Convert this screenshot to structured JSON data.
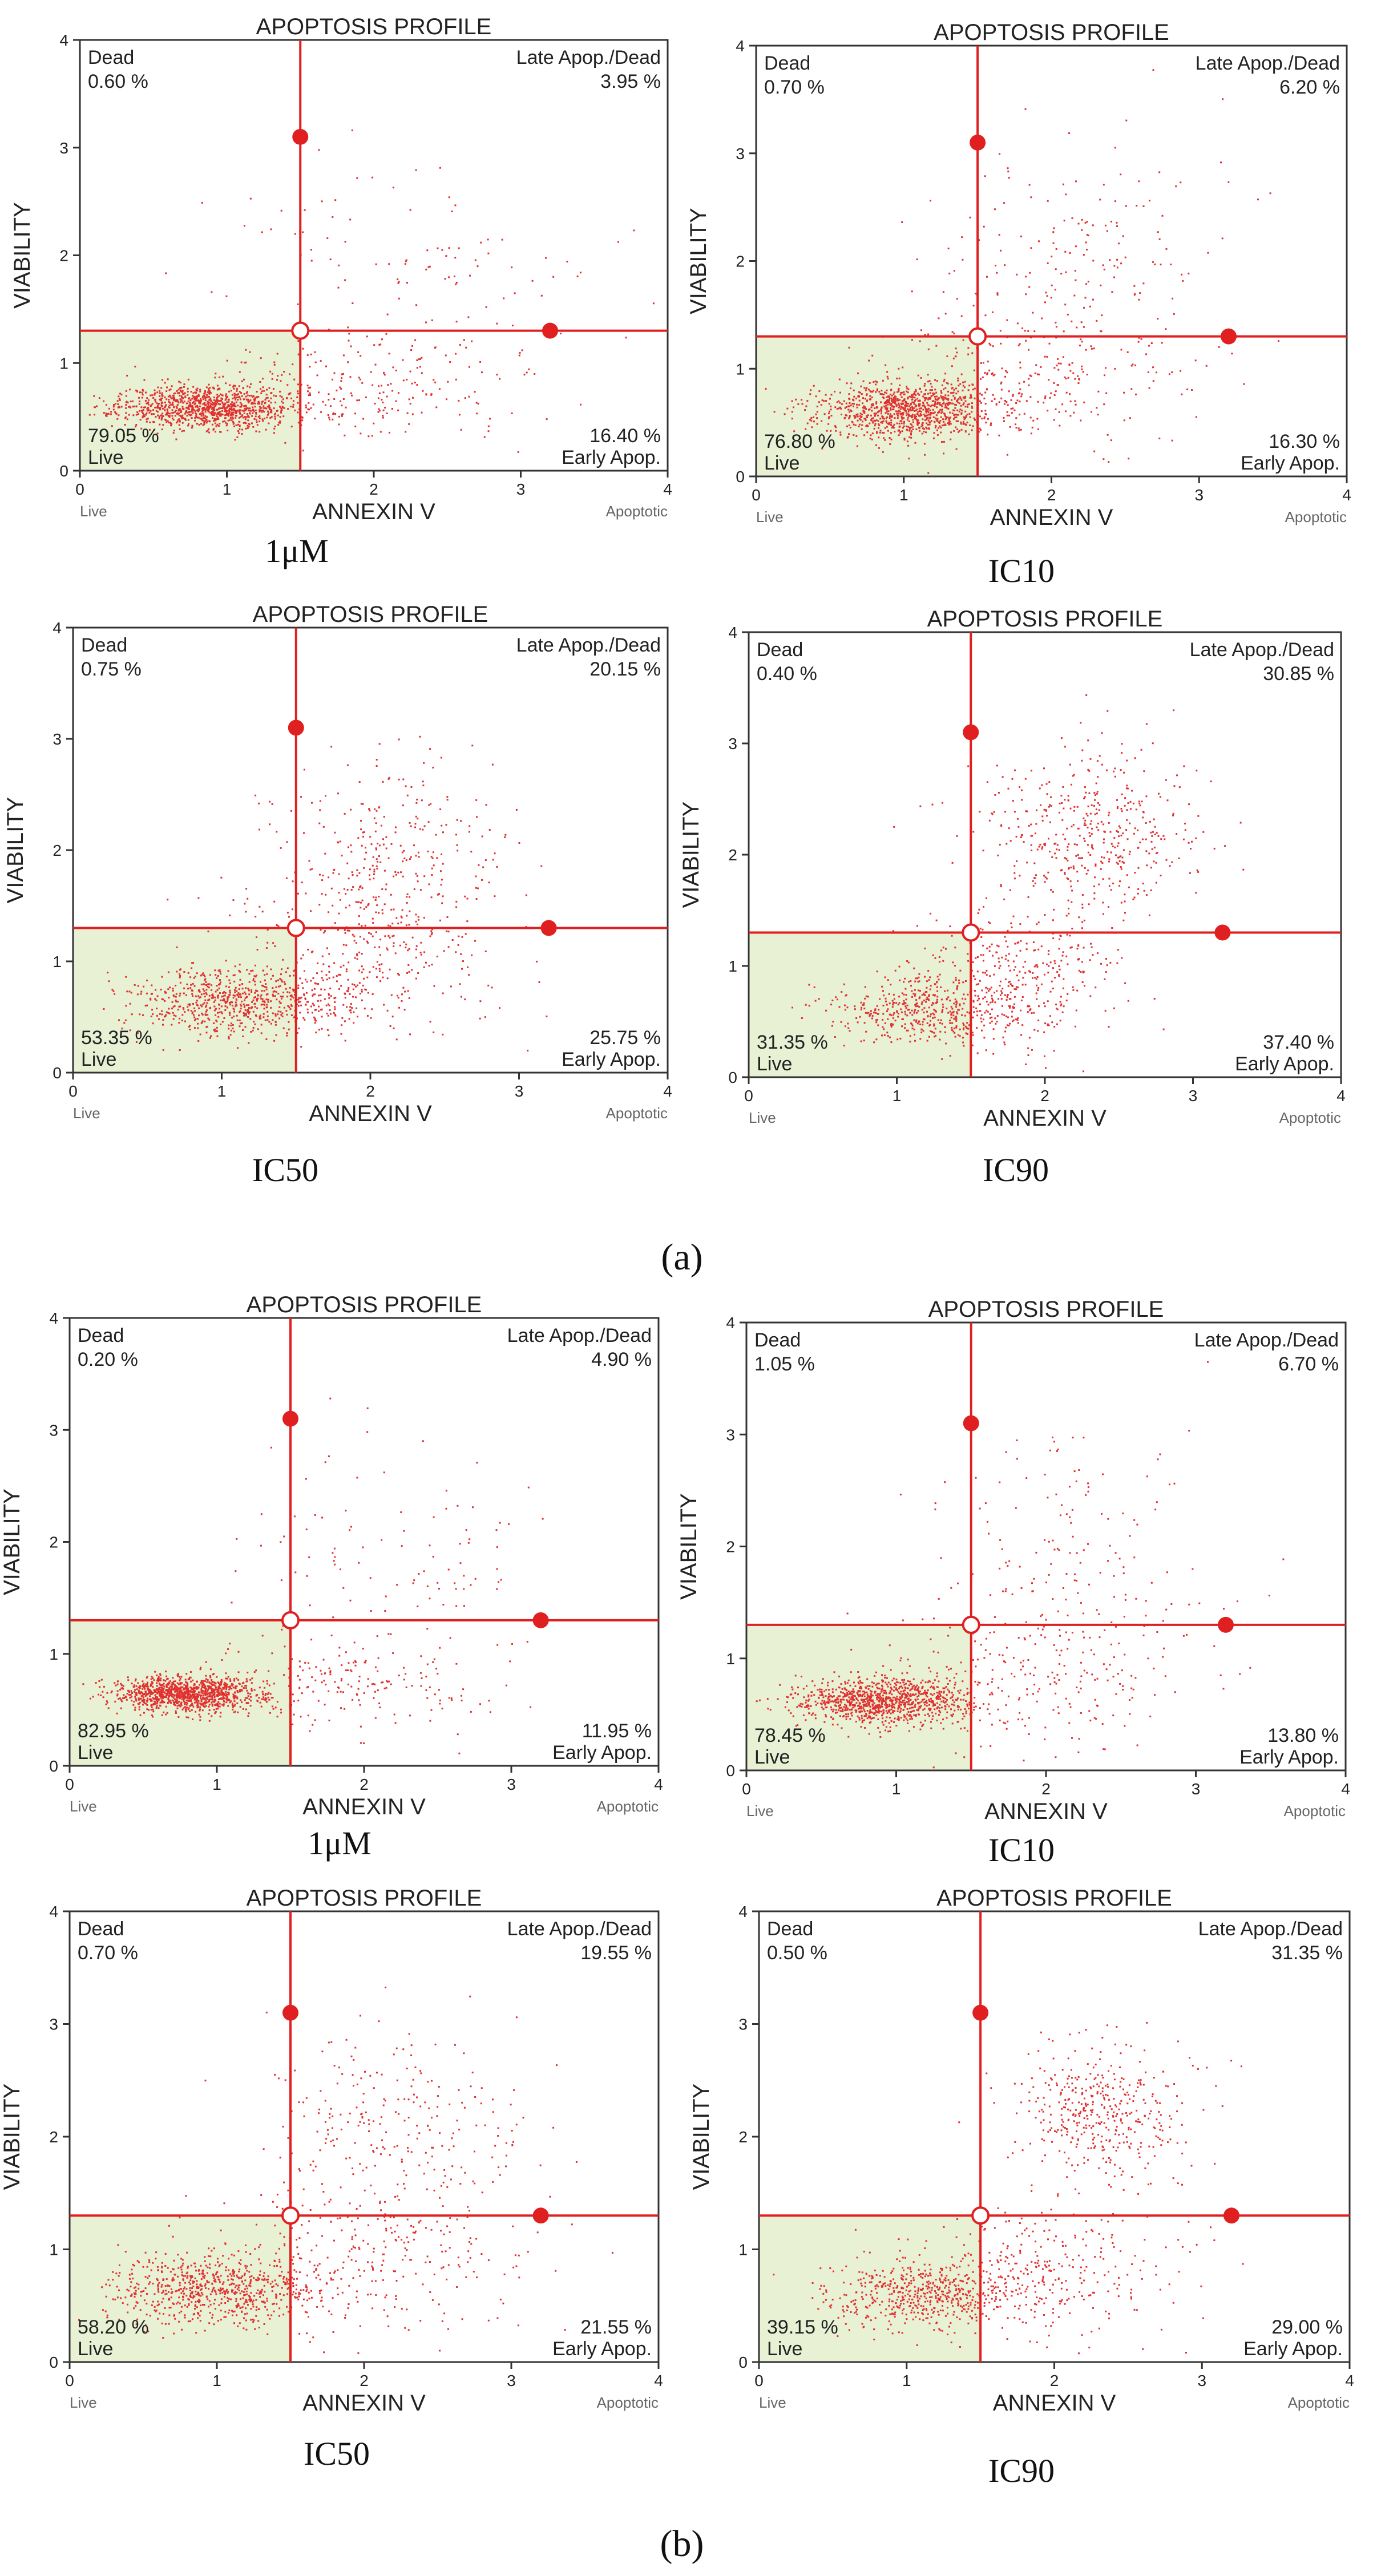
{
  "figure_labels": [
    "(a)",
    "(b)"
  ],
  "chart_data": [
    {
      "type": "scatter",
      "panel": "a",
      "condition": "1μM",
      "title": "APOPTOSIS PROFILE",
      "xlabel": "ANNEXIN V",
      "ylabel": "VIABILITY",
      "x_ticks": [
        "0",
        "1",
        "2",
        "3",
        "4"
      ],
      "y_ticks": [
        "0",
        "1",
        "2",
        "3",
        "4"
      ],
      "xlim": [
        0,
        4
      ],
      "ylim": [
        0,
        4
      ],
      "x_left_label": "Live",
      "x_right_label": "Apoptotic",
      "gate": {
        "x": 1.5,
        "y": 1.3
      },
      "marker_points": [
        [
          1.5,
          3.1
        ],
        [
          3.2,
          1.3
        ]
      ],
      "quadrants": {
        "dead": {
          "label": "Dead",
          "value": "0.60 %"
        },
        "late": {
          "label": "Late Apop./Dead",
          "value": "3.95 %"
        },
        "live": {
          "label": "Live",
          "value": "79.05 %"
        },
        "early": {
          "label": "Early Apop.",
          "value": "16.40 %"
        }
      },
      "clusters": [
        {
          "cx": 0.85,
          "cy": 0.6,
          "sx": 0.3,
          "sy": 0.1,
          "n": 1100
        },
        {
          "cx": 1.9,
          "cy": 0.75,
          "sx": 0.5,
          "sy": 0.25,
          "n": 230
        },
        {
          "cx": 2.3,
          "cy": 1.8,
          "sx": 0.6,
          "sy": 0.5,
          "n": 110
        }
      ],
      "seed": 11
    },
    {
      "type": "scatter",
      "panel": "a",
      "condition": "IC10",
      "title": "APOPTOSIS PROFILE",
      "xlabel": "ANNEXIN V",
      "ylabel": "VIABILITY",
      "x_ticks": [
        "0",
        "1",
        "2",
        "3",
        "4"
      ],
      "y_ticks": [
        "0",
        "1",
        "2",
        "3",
        "4"
      ],
      "xlim": [
        0,
        4
      ],
      "ylim": [
        0,
        4
      ],
      "x_left_label": "Live",
      "x_right_label": "Apoptotic",
      "gate": {
        "x": 1.5,
        "y": 1.3
      },
      "marker_points": [
        [
          1.5,
          3.1
        ],
        [
          3.2,
          1.3
        ]
      ],
      "quadrants": {
        "dead": {
          "label": "Dead",
          "value": "0.70 %"
        },
        "late": {
          "label": "Late Apop./Dead",
          "value": "6.20 %"
        },
        "live": {
          "label": "Live",
          "value": "76.80 %"
        },
        "early": {
          "label": "Early Apop.",
          "value": "16.30 %"
        }
      },
      "clusters": [
        {
          "cx": 1.0,
          "cy": 0.62,
          "sx": 0.3,
          "sy": 0.13,
          "n": 1000
        },
        {
          "cx": 1.9,
          "cy": 0.9,
          "sx": 0.5,
          "sy": 0.35,
          "n": 260
        },
        {
          "cx": 2.2,
          "cy": 2.0,
          "sx": 0.5,
          "sy": 0.5,
          "n": 170
        }
      ],
      "seed": 23
    },
    {
      "type": "scatter",
      "panel": "a",
      "condition": "IC50",
      "title": "APOPTOSIS PROFILE",
      "xlabel": "ANNEXIN V",
      "ylabel": "VIABILITY",
      "x_ticks": [
        "0",
        "1",
        "2",
        "3",
        "4"
      ],
      "y_ticks": [
        "0",
        "1",
        "2",
        "3",
        "4"
      ],
      "xlim": [
        0,
        4
      ],
      "ylim": [
        0,
        4
      ],
      "x_left_label": "Live",
      "x_right_label": "Apoptotic",
      "gate": {
        "x": 1.5,
        "y": 1.3
      },
      "marker_points": [
        [
          1.5,
          3.1
        ],
        [
          3.2,
          1.3
        ]
      ],
      "quadrants": {
        "dead": {
          "label": "Dead",
          "value": "0.75 %"
        },
        "late": {
          "label": "Late Apop./Dead",
          "value": "20.15 %"
        },
        "live": {
          "label": "Live",
          "value": "53.35 %"
        },
        "early": {
          "label": "Early Apop.",
          "value": "25.75 %"
        }
      },
      "clusters": [
        {
          "cx": 1.1,
          "cy": 0.65,
          "sx": 0.35,
          "sy": 0.15,
          "n": 700
        },
        {
          "cx": 1.9,
          "cy": 1.0,
          "sx": 0.45,
          "sy": 0.35,
          "n": 330
        },
        {
          "cx": 2.1,
          "cy": 2.0,
          "sx": 0.4,
          "sy": 0.45,
          "n": 280
        }
      ],
      "seed": 37
    },
    {
      "type": "scatter",
      "panel": "a",
      "condition": "IC90",
      "title": "APOPTOSIS PROFILE",
      "xlabel": "ANNEXIN V",
      "ylabel": "VIABILITY",
      "x_ticks": [
        "0",
        "1",
        "2",
        "3",
        "4"
      ],
      "y_ticks": [
        "0",
        "1",
        "2",
        "3",
        "4"
      ],
      "xlim": [
        0,
        4
      ],
      "ylim": [
        0,
        4
      ],
      "x_left_label": "Live",
      "x_right_label": "Apoptotic",
      "gate": {
        "x": 1.5,
        "y": 1.3
      },
      "marker_points": [
        [
          1.5,
          3.1
        ],
        [
          3.2,
          1.3
        ]
      ],
      "quadrants": {
        "dead": {
          "label": "Dead",
          "value": "0.40 %"
        },
        "late": {
          "label": "Late Apop./Dead",
          "value": "30.85 %"
        },
        "live": {
          "label": "Live",
          "value": "31.35 %"
        },
        "early": {
          "label": "Early Apop.",
          "value": "37.40 %"
        }
      },
      "clusters": [
        {
          "cx": 1.2,
          "cy": 0.6,
          "sx": 0.35,
          "sy": 0.15,
          "n": 450
        },
        {
          "cx": 1.8,
          "cy": 0.9,
          "sx": 0.35,
          "sy": 0.3,
          "n": 350
        },
        {
          "cx": 2.3,
          "cy": 2.2,
          "sx": 0.35,
          "sy": 0.35,
          "n": 450
        }
      ],
      "seed": 41
    },
    {
      "type": "scatter",
      "panel": "b",
      "condition": "1μM",
      "title": "APOPTOSIS PROFILE",
      "xlabel": "ANNEXIN V",
      "ylabel": "VIABILITY",
      "x_ticks": [
        "0",
        "1",
        "2",
        "3",
        "4"
      ],
      "y_ticks": [
        "0",
        "1",
        "2",
        "3",
        "4"
      ],
      "xlim": [
        0,
        4
      ],
      "ylim": [
        0,
        4
      ],
      "x_left_label": "Live",
      "x_right_label": "Apoptotic",
      "gate": {
        "x": 1.5,
        "y": 1.3
      },
      "marker_points": [
        [
          1.5,
          3.1
        ],
        [
          3.2,
          1.3
        ]
      ],
      "quadrants": {
        "dead": {
          "label": "Dead",
          "value": "0.20 %"
        },
        "late": {
          "label": "Late Apop./Dead",
          "value": "4.90 %"
        },
        "live": {
          "label": "Live",
          "value": "82.95 %"
        },
        "early": {
          "label": "Early Apop.",
          "value": "11.95 %"
        }
      },
      "clusters": [
        {
          "cx": 0.8,
          "cy": 0.65,
          "sx": 0.25,
          "sy": 0.08,
          "n": 1150
        },
        {
          "cx": 1.9,
          "cy": 0.7,
          "sx": 0.5,
          "sy": 0.2,
          "n": 180
        },
        {
          "cx": 2.2,
          "cy": 1.7,
          "sx": 0.5,
          "sy": 0.6,
          "n": 120
        }
      ],
      "seed": 53
    },
    {
      "type": "scatter",
      "panel": "b",
      "condition": "IC10",
      "title": "APOPTOSIS PROFILE",
      "xlabel": "ANNEXIN V",
      "ylabel": "VIABILITY",
      "x_ticks": [
        "0",
        "1",
        "2",
        "3",
        "4"
      ],
      "y_ticks": [
        "0",
        "1",
        "2",
        "3",
        "4"
      ],
      "xlim": [
        0,
        4
      ],
      "ylim": [
        0,
        4
      ],
      "x_left_label": "Live",
      "x_right_label": "Apoptotic",
      "gate": {
        "x": 1.5,
        "y": 1.3
      },
      "marker_points": [
        [
          1.5,
          3.1
        ],
        [
          3.2,
          1.3
        ]
      ],
      "quadrants": {
        "dead": {
          "label": "Dead",
          "value": "1.05 %"
        },
        "late": {
          "label": "Late Apop./Dead",
          "value": "6.70 %"
        },
        "live": {
          "label": "Live",
          "value": "78.45 %"
        },
        "early": {
          "label": "Early Apop.",
          "value": "13.80 %"
        }
      },
      "clusters": [
        {
          "cx": 0.9,
          "cy": 0.62,
          "sx": 0.28,
          "sy": 0.1,
          "n": 1000
        },
        {
          "cx": 1.9,
          "cy": 0.8,
          "sx": 0.55,
          "sy": 0.3,
          "n": 230
        },
        {
          "cx": 2.1,
          "cy": 1.9,
          "sx": 0.5,
          "sy": 0.6,
          "n": 170
        }
      ],
      "seed": 67
    },
    {
      "type": "scatter",
      "panel": "b",
      "condition": "IC50",
      "title": "APOPTOSIS PROFILE",
      "xlabel": "ANNEXIN V",
      "ylabel": "VIABILITY",
      "x_ticks": [
        "0",
        "1",
        "2",
        "3",
        "4"
      ],
      "y_ticks": [
        "0",
        "1",
        "2",
        "3",
        "4"
      ],
      "xlim": [
        0,
        4
      ],
      "ylim": [
        0,
        4
      ],
      "x_left_label": "Live",
      "x_right_label": "Apoptotic",
      "gate": {
        "x": 1.5,
        "y": 1.3
      },
      "marker_points": [
        [
          1.5,
          3.1
        ],
        [
          3.2,
          1.3
        ]
      ],
      "quadrants": {
        "dead": {
          "label": "Dead",
          "value": "0.70 %"
        },
        "late": {
          "label": "Late Apop./Dead",
          "value": "19.55 %"
        },
        "live": {
          "label": "Live",
          "value": "58.20 %"
        },
        "early": {
          "label": "Early Apop.",
          "value": "21.55 %"
        }
      },
      "clusters": [
        {
          "cx": 0.95,
          "cy": 0.65,
          "sx": 0.35,
          "sy": 0.15,
          "n": 700
        },
        {
          "cx": 1.9,
          "cy": 0.9,
          "sx": 0.5,
          "sy": 0.35,
          "n": 300
        },
        {
          "cx": 2.2,
          "cy": 2.0,
          "sx": 0.45,
          "sy": 0.5,
          "n": 270
        }
      ],
      "seed": 79
    },
    {
      "type": "scatter",
      "panel": "b",
      "condition": "IC90",
      "title": "APOPTOSIS PROFILE",
      "xlabel": "ANNEXIN V",
      "ylabel": "VIABILITY",
      "x_ticks": [
        "0",
        "1",
        "2",
        "3",
        "4"
      ],
      "y_ticks": [
        "0",
        "1",
        "2",
        "3",
        "4"
      ],
      "xlim": [
        0,
        4
      ],
      "ylim": [
        0,
        4
      ],
      "x_left_label": "Live",
      "x_right_label": "Apoptotic",
      "gate": {
        "x": 1.5,
        "y": 1.3
      },
      "marker_points": [
        [
          1.5,
          3.1
        ],
        [
          3.2,
          1.3
        ]
      ],
      "quadrants": {
        "dead": {
          "label": "Dead",
          "value": "0.50 %"
        },
        "late": {
          "label": "Late Apop./Dead",
          "value": "31.35 %"
        },
        "live": {
          "label": "Live",
          "value": "39.15 %"
        },
        "early": {
          "label": "Early Apop.",
          "value": "29.00 %"
        }
      },
      "clusters": [
        {
          "cx": 1.1,
          "cy": 0.6,
          "sx": 0.35,
          "sy": 0.15,
          "n": 550
        },
        {
          "cx": 1.9,
          "cy": 0.85,
          "sx": 0.45,
          "sy": 0.3,
          "n": 320
        },
        {
          "cx": 2.35,
          "cy": 2.2,
          "sx": 0.3,
          "sy": 0.3,
          "n": 420
        }
      ],
      "seed": 97
    }
  ],
  "colors": {
    "accent": "#e02020",
    "dots": "#e03030",
    "live_fill": "#e8f1d4",
    "axis": "#333333",
    "text": "#222222",
    "muted": "#666666"
  }
}
